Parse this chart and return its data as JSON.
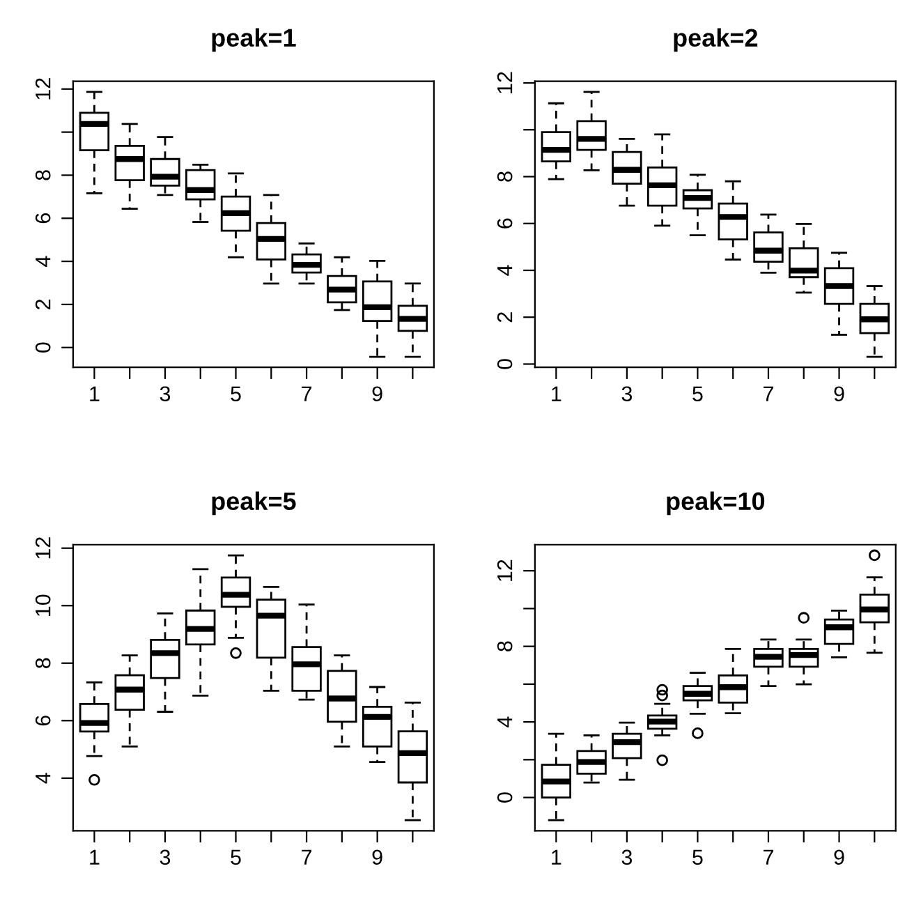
{
  "chart_data": [
    {
      "type": "box",
      "title": "peak=1",
      "categories": [
        "1",
        null,
        "3",
        null,
        "5",
        null,
        "7",
        null,
        "9",
        null
      ],
      "ylim": [
        -0.92,
        12.36
      ],
      "yticks": [
        0,
        2,
        4,
        6,
        8,
        {
          "value": 10,
          "label": null
        },
        12
      ],
      "boxes": [
        {
          "low": 7.16,
          "q1": 9.16,
          "median": 10.38,
          "q3": 10.9,
          "high": 11.87
        },
        {
          "low": 6.44,
          "q1": 7.77,
          "median": 8.75,
          "q3": 9.36,
          "high": 10.38
        },
        {
          "low": 7.08,
          "q1": 7.52,
          "median": 7.93,
          "q3": 8.75,
          "high": 9.77
        },
        {
          "low": 5.83,
          "q1": 6.88,
          "median": 7.31,
          "q3": 8.24,
          "high": 8.49
        },
        {
          "low": 4.19,
          "q1": 5.42,
          "median": 6.24,
          "q3": 7.01,
          "high": 8.08
        },
        {
          "low": 2.97,
          "q1": 4.09,
          "median": 5.04,
          "q3": 5.78,
          "high": 7.08
        },
        {
          "low": 2.97,
          "q1": 3.48,
          "median": 3.84,
          "q3": 4.32,
          "high": 4.83
        },
        {
          "low": 1.74,
          "q1": 2.1,
          "median": 2.69,
          "q3": 3.32,
          "high": 4.19
        },
        {
          "low": -0.43,
          "q1": 1.23,
          "median": 1.87,
          "q3": 3.07,
          "high": 4.02
        },
        {
          "low": -0.43,
          "q1": 0.77,
          "median": 1.33,
          "q3": 1.94,
          "high": 2.97
        }
      ]
    },
    {
      "type": "box",
      "title": "peak=2",
      "categories": [
        "1",
        null,
        "3",
        null,
        "5",
        null,
        "7",
        null,
        "9",
        null
      ],
      "ylim": [
        -0.14,
        12.07
      ],
      "yticks": [
        0,
        2,
        4,
        6,
        8,
        {
          "value": 10,
          "label": null
        },
        12
      ],
      "boxes": [
        {
          "low": 7.89,
          "q1": 8.65,
          "median": 9.14,
          "q3": 9.9,
          "high": 11.13
        },
        {
          "low": 8.27,
          "q1": 9.14,
          "median": 9.61,
          "q3": 10.37,
          "high": 11.62
        },
        {
          "low": 6.76,
          "q1": 7.7,
          "median": 8.29,
          "q3": 9.05,
          "high": 9.61
        },
        {
          "low": 5.91,
          "q1": 6.76,
          "median": 7.63,
          "q3": 8.39,
          "high": 9.8
        },
        {
          "low": 5.5,
          "q1": 6.64,
          "median": 7.09,
          "q3": 7.42,
          "high": 8.08
        },
        {
          "low": 4.46,
          "q1": 5.32,
          "median": 6.28,
          "q3": 6.85,
          "high": 7.8
        },
        {
          "low": 3.9,
          "q1": 4.37,
          "median": 4.84,
          "q3": 5.62,
          "high": 6.38
        },
        {
          "low": 3.05,
          "q1": 3.71,
          "median": 3.99,
          "q3": 4.94,
          "high": 5.98
        },
        {
          "low": 1.25,
          "q1": 2.57,
          "median": 3.33,
          "q3": 4.09,
          "high": 4.75
        },
        {
          "low": 0.31,
          "q1": 1.32,
          "median": 1.91,
          "q3": 2.57,
          "high": 3.33
        }
      ]
    },
    {
      "type": "box",
      "title": "peak=5",
      "categories": [
        "1",
        null,
        "3",
        null,
        "5",
        null,
        "7",
        null,
        "9",
        null
      ],
      "ylim": [
        2.17,
        12.12
      ],
      "yticks": [
        4,
        6,
        8,
        10,
        12
      ],
      "boxes": [
        {
          "low": 4.77,
          "q1": 5.62,
          "median": 5.92,
          "q3": 6.58,
          "high": 7.33,
          "outliers": [
            3.94
          ]
        },
        {
          "low": 5.1,
          "q1": 6.38,
          "median": 7.08,
          "q3": 7.58,
          "high": 8.27
        },
        {
          "low": 6.31,
          "q1": 7.48,
          "median": 8.35,
          "q3": 8.81,
          "high": 9.73
        },
        {
          "low": 6.87,
          "q1": 8.65,
          "median": 9.19,
          "q3": 9.83,
          "high": 11.27
        },
        {
          "low": 8.88,
          "q1": 9.96,
          "median": 10.38,
          "q3": 10.98,
          "high": 11.75,
          "outliers": [
            8.35
          ]
        },
        {
          "low": 7.04,
          "q1": 8.19,
          "median": 9.65,
          "q3": 10.21,
          "high": 10.65
        },
        {
          "low": 6.73,
          "q1": 7.04,
          "median": 7.96,
          "q3": 8.56,
          "high": 10.04
        },
        {
          "low": 5.1,
          "q1": 5.96,
          "median": 6.77,
          "q3": 7.73,
          "high": 8.27
        },
        {
          "low": 4.56,
          "q1": 5.1,
          "median": 6.13,
          "q3": 6.48,
          "high": 7.17
        },
        {
          "low": 2.54,
          "q1": 3.85,
          "median": 4.87,
          "q3": 5.63,
          "high": 6.63
        }
      ]
    },
    {
      "type": "box",
      "title": "peak=10",
      "categories": [
        "1",
        null,
        "3",
        null,
        "5",
        null,
        "7",
        null,
        "9",
        null
      ],
      "ylim": [
        -1.76,
        13.38
      ],
      "yticks": [
        0,
        {
          "value": 2,
          "label": null
        },
        4,
        {
          "value": 6,
          "label": null
        },
        8,
        {
          "value": 10,
          "label": null
        },
        12
      ],
      "boxes": [
        {
          "low": -1.2,
          "q1": 0.0,
          "median": 0.85,
          "q3": 1.73,
          "high": 3.37
        },
        {
          "low": 0.79,
          "q1": 1.26,
          "median": 1.88,
          "q3": 2.46,
          "high": 3.29
        },
        {
          "low": 0.94,
          "q1": 2.08,
          "median": 2.93,
          "q3": 3.37,
          "high": 3.96
        },
        {
          "low": 3.29,
          "q1": 3.64,
          "median": 4.02,
          "q3": 4.34,
          "high": 4.96,
          "outliers": [
            5.7,
            5.4,
            1.97
          ]
        },
        {
          "low": 4.43,
          "q1": 5.14,
          "median": 5.49,
          "q3": 5.9,
          "high": 6.6,
          "outliers": [
            3.4
          ]
        },
        {
          "low": 4.46,
          "q1": 5.02,
          "median": 5.84,
          "q3": 6.46,
          "high": 7.86
        },
        {
          "low": 5.9,
          "q1": 6.92,
          "median": 7.45,
          "q3": 7.86,
          "high": 8.36
        },
        {
          "low": 5.99,
          "q1": 6.92,
          "median": 7.54,
          "q3": 7.86,
          "high": 8.36,
          "outliers": [
            9.51
          ]
        },
        {
          "low": 7.42,
          "q1": 8.13,
          "median": 9.01,
          "q3": 9.42,
          "high": 9.89
        },
        {
          "low": 7.66,
          "q1": 9.27,
          "median": 9.95,
          "q3": 10.74,
          "high": 11.65,
          "outliers": [
            12.82
          ]
        }
      ]
    }
  ]
}
